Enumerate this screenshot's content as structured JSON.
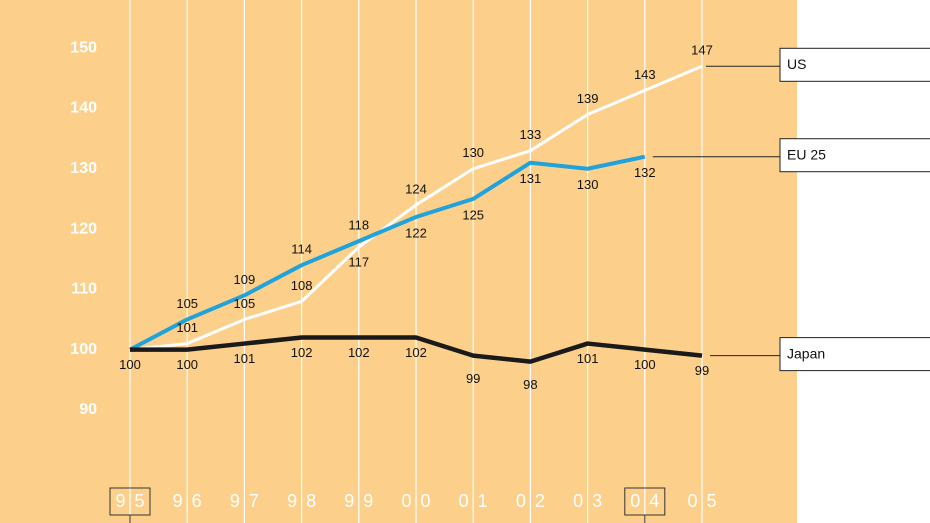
{
  "chart_data": {
    "type": "line",
    "categories": [
      "95",
      "96",
      "97",
      "98",
      "99",
      "00",
      "01",
      "02",
      "03",
      "04",
      "05"
    ],
    "series": [
      {
        "name": "US",
        "color": "#ffffff",
        "values": [
          100,
          101,
          105,
          108,
          117,
          124,
          130,
          133,
          139,
          143,
          147
        ]
      },
      {
        "name": "EU 25",
        "color": "#1fa3da",
        "values": [
          100,
          105,
          109,
          114,
          118,
          122,
          125,
          131,
          130,
          132,
          null
        ]
      },
      {
        "name": "Japan",
        "color": "#1a1a1a",
        "values": [
          100,
          100,
          101,
          102,
          102,
          102,
          99,
          98,
          101,
          100,
          99
        ]
      }
    ],
    "ylim": [
      85,
      158
    ],
    "yticks": [
      90,
      100,
      110,
      120,
      130,
      140,
      150
    ],
    "grid": false
  }
}
